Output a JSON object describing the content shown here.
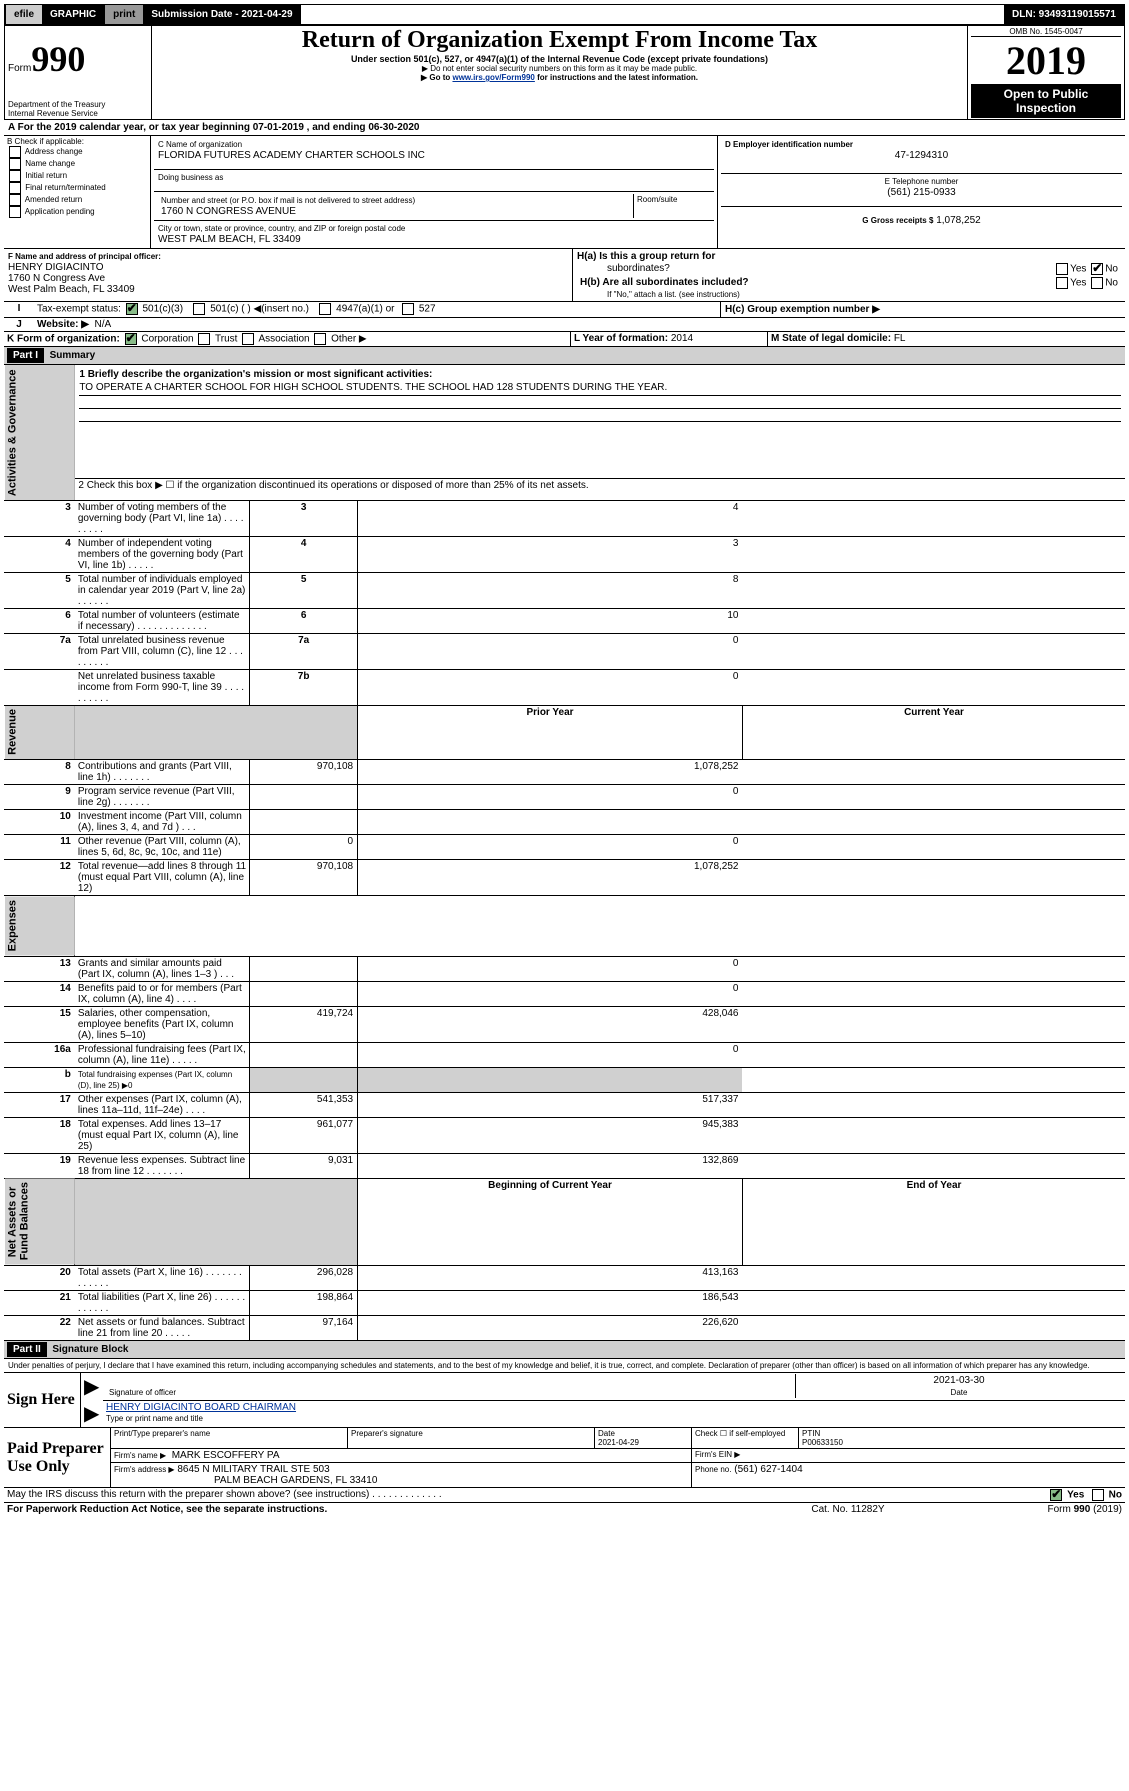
{
  "top_bar": {
    "efile": "efile",
    "graphic": "GRAPHIC",
    "print": "print",
    "sub_label": "Submission Date - 2021-04-29",
    "dln": "DLN: 93493119015571"
  },
  "hdr": {
    "form": "Form",
    "no": "990",
    "title": "Return of Organization Exempt From Income Tax",
    "sub1": "Under section 501(c), 527, or 4947(a)(1) of the Internal Revenue Code (except private foundations)",
    "sub2": "▶ Do not enter social security numbers on this form as it may be made public.",
    "sub3_pre": "▶ Go to ",
    "sub3_link": "www.irs.gov/Form990",
    "sub3_post": " for instructions and the latest information.",
    "dept": "Department of the Treasury",
    "irs": "Internal Revenue Service",
    "omb": "OMB No. 1545-0047",
    "year": "2019",
    "open": "Open to Public",
    "insp": "Inspection"
  },
  "A": {
    "line": "A  For the 2019 calendar year, or tax year beginning 07-01-2019    , and ending 06-30-2020"
  },
  "B": {
    "label": "B Check if applicable:",
    "opts": [
      "Address change",
      "Name change",
      "Initial return",
      "Final return/terminated",
      "Amended return",
      "Application pending"
    ]
  },
  "C": {
    "label": "C Name of organization",
    "name": "FLORIDA FUTURES ACADEMY CHARTER SCHOOLS INC",
    "dba": "Doing business as",
    "addr_label": "Number and street (or P.O. box if mail is not delivered to street address)",
    "room": "Room/suite",
    "addr": "1760 N CONGRESS AVENUE",
    "city_label": "City or town, state or province, country, and ZIP or foreign postal code",
    "city": "WEST PALM BEACH, FL  33409"
  },
  "D": {
    "label": "D Employer identification number",
    "ein": "47-1294310"
  },
  "E": {
    "label": "E Telephone number",
    "tel": "(561) 215-0933"
  },
  "G": {
    "label": "G Gross receipts $",
    "amt": "1,078,252"
  },
  "F": {
    "label": "F  Name and address of principal officer:",
    "name": "HENRY DIGIACINTO",
    "addr1": "1760 N Congress Ave",
    "addr2": "West Palm Beach, FL  33409"
  },
  "H": {
    "a": "H(a)  Is this a group return for",
    "a2": "subordinates?",
    "b": "H(b)  Are all subordinates included?",
    "b2": "If \"No,\" attach a list. (see instructions)",
    "c": "H(c)  Group exemption number ▶",
    "yes": "Yes",
    "no": "No"
  },
  "I": {
    "label": "Tax-exempt status:",
    "o1": "501(c)(3)",
    "o2": "501(c) (  ) ◀(insert no.)",
    "o3": "4947(a)(1) or",
    "o4": "527"
  },
  "J": {
    "label": "Website: ▶",
    "val": "N/A"
  },
  "K": {
    "label": "K Form of organization:",
    "corp": "Corporation",
    "trust": "Trust",
    "assoc": "Association",
    "other": "Other ▶"
  },
  "L": {
    "label": "L Year of formation:",
    "val": "2014"
  },
  "M": {
    "label": "M State of legal domicile:",
    "val": "FL"
  },
  "p1": {
    "title": "Part I",
    "name": "Summary",
    "l1": "1  Briefly describe the organization's mission or most significant activities:",
    "l1v": "TO OPERATE A CHARTER SCHOOL FOR HIGH SCHOOL STUDENTS. THE SCHOOL HAD 128 STUDENTS DURING THE YEAR.",
    "l2": "2   Check this box ▶ ☐  if the organization discontinued its operations or disposed of more than 25% of its net assets.",
    "rows_gov": [
      {
        "n": "3",
        "t": "Number of voting members of the governing body (Part VI, line 1a)   .    .    .    .    .    .    .    .    .",
        "b": "3",
        "v": "4"
      },
      {
        "n": "4",
        "t": "Number of independent voting members of the governing body (Part VI, line 1b)  .    .    .    .    .",
        "b": "4",
        "v": "3"
      },
      {
        "n": "5",
        "t": "Total number of individuals employed in calendar year 2019 (Part V, line 2a)   .    .    .    .    .    .",
        "b": "5",
        "v": "8"
      },
      {
        "n": "6",
        "t": "Total number of volunteers (estimate if necessary)   .    .    .    .    .    .    .    .    .    .    .    .    .",
        "b": "6",
        "v": "10"
      },
      {
        "n": "7a",
        "t": "Total unrelated business revenue from Part VIII, column (C), line 12  .    .    .    .    .    .    .    .    .",
        "b": "7a",
        "v": "0"
      },
      {
        "n": "",
        "t": "Net unrelated business taxable income from Form 990-T, line 39  .    .    .    .    .    .    .    .    .    .",
        "b": "7b",
        "v": "0"
      }
    ],
    "col_prior": "Prior Year",
    "col_curr": "Current Year",
    "rows_rev": [
      {
        "n": "8",
        "t": "Contributions and grants (Part VIII, line 1h)   .    .    .    .    .    .    .",
        "p": "970,108",
        "c": "1,078,252"
      },
      {
        "n": "9",
        "t": "Program service revenue (Part VIII, line 2g)   .    .    .    .    .    .    .",
        "p": "",
        "c": "0"
      },
      {
        "n": "10",
        "t": "Investment income (Part VIII, column (A), lines 3, 4, and 7d )   .    .    .",
        "p": "",
        "c": ""
      },
      {
        "n": "11",
        "t": "Other revenue (Part VIII, column (A), lines 5, 6d, 8c, 9c, 10c, and 11e)",
        "p": "0",
        "c": "0"
      },
      {
        "n": "12",
        "t": "Total revenue—add lines 8 through 11 (must equal Part VIII, column (A), line 12)",
        "p": "970,108",
        "c": "1,078,252"
      }
    ],
    "rows_exp": [
      {
        "n": "13",
        "t": "Grants and similar amounts paid (Part IX, column (A), lines 1–3 )  .    .    .",
        "p": "",
        "c": "0"
      },
      {
        "n": "14",
        "t": "Benefits paid to or for members (Part IX, column (A), line 4)  .    .    .    .",
        "p": "",
        "c": "0"
      },
      {
        "n": "15",
        "t": "Salaries, other compensation, employee benefits (Part IX, column (A), lines 5–10)",
        "p": "419,724",
        "c": "428,046"
      },
      {
        "n": "16a",
        "t": "Professional fundraising fees (Part IX, column (A), line 11e)  .    .    .    .    .",
        "p": "",
        "c": "0"
      },
      {
        "n": "b",
        "t": "Total fundraising expenses (Part IX, column (D), line 25) ▶0",
        "p": "HL",
        "c": "HL"
      },
      {
        "n": "17",
        "t": "Other expenses (Part IX, column (A), lines 11a–11d, 11f–24e)  .    .    .    .",
        "p": "541,353",
        "c": "517,337"
      },
      {
        "n": "18",
        "t": "Total expenses. Add lines 13–17 (must equal Part IX, column (A), line 25)",
        "p": "961,077",
        "c": "945,383"
      },
      {
        "n": "19",
        "t": "Revenue less expenses. Subtract line 18 from line 12  .    .    .    .    .    .    .",
        "p": "9,031",
        "c": "132,869"
      }
    ],
    "col_beg": "Beginning of Current Year",
    "col_end": "End of Year",
    "rows_na": [
      {
        "n": "20",
        "t": "Total assets (Part X, line 16)  .    .    .    .    .    .    .    .    .    .    .    .    .",
        "p": "296,028",
        "c": "413,163"
      },
      {
        "n": "21",
        "t": "Total liabilities (Part X, line 26)  .    .    .    .    .    .    .    .    .    .    .    .",
        "p": "198,864",
        "c": "186,543"
      },
      {
        "n": "22",
        "t": "Net assets or fund balances. Subtract line 21 from line 20  .    .    .    .    .",
        "p": "97,164",
        "c": "226,620"
      }
    ],
    "side_gov": "Activities & Governance",
    "side_rev": "Revenue",
    "side_exp": "Expenses",
    "side_na": "Net Assets or\nFund Balances"
  },
  "p2": {
    "title": "Part II",
    "name": "Signature Block",
    "decl": "Under penalties of perjury, I declare that I have examined this return, including accompanying schedules and statements, and to the best of my knowledge and belief, it is true, correct, and complete. Declaration of preparer (other than officer) is based on all information of which preparer has any knowledge.",
    "sign_here": "Sign Here",
    "sig_off": "Signature of officer",
    "date": "Date",
    "date_v": "2021-03-30",
    "name_title": "HENRY DIGIACINTO  BOARD CHAIRMAN",
    "name_lbl": "Type or print name and title",
    "paid": "Paid Preparer Use Only",
    "pp_name": "Print/Type preparer's name",
    "pp_sig": "Preparer's signature",
    "pp_date": "Date",
    "pp_date_v": "2021-04-29",
    "pp_check": "Check ☐ if self-employed",
    "ptin": "PTIN",
    "ptin_v": "P00633150",
    "firm": "Firm's name   ▶",
    "firm_v": "MARK ESCOFFERY PA",
    "ein": "Firm's EIN ▶",
    "addr": "Firm's address ▶",
    "addr_v": "8645 N MILITARY TRAIL STE 503",
    "addr_v2": "PALM BEACH GARDENS, FL  33410",
    "phone": "Phone no.",
    "phone_v": "(561) 627-1404",
    "may": "May the IRS discuss this return with the preparer shown above? (see instructions)   .    .    .    .    .    .    .    .    .    .    .    .    .",
    "yes": "Yes",
    "no": "No"
  },
  "ftr": {
    "pra": "For Paperwork Reduction Act Notice, see the separate instructions.",
    "cat": "Cat. No. 11282Y",
    "form": "Form 990 (2019)"
  }
}
